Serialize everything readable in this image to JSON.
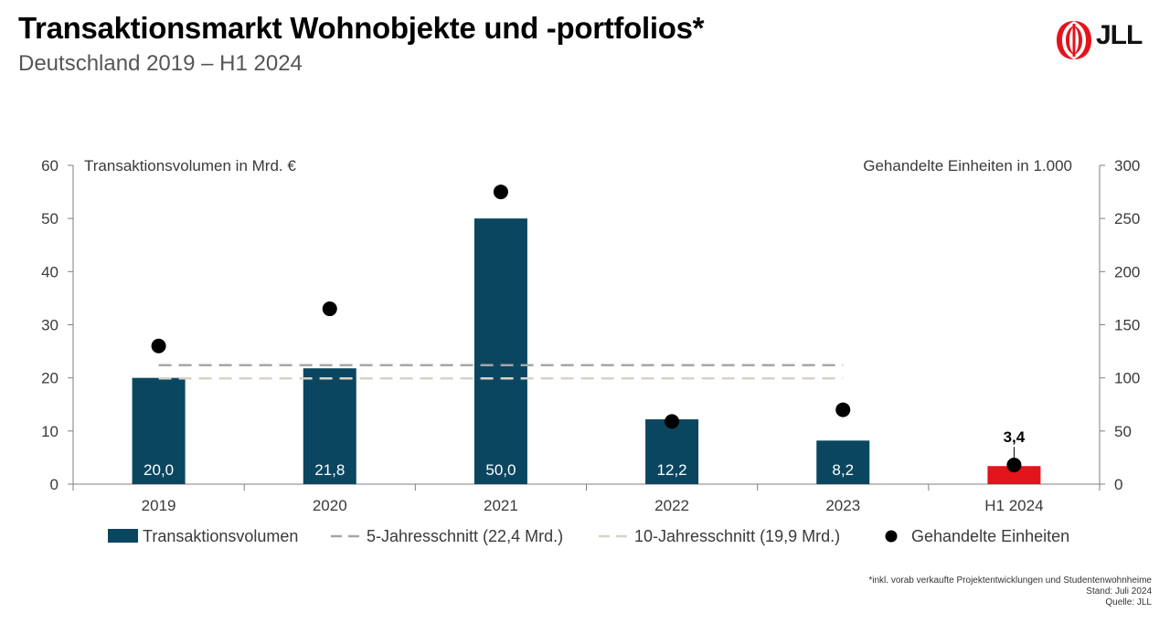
{
  "header": {
    "title": "Transaktionsmarkt Wohnobjekte und -portfolios*",
    "subtitle": "Deutschland 2019 – H1 2024",
    "logo_text": "JLL"
  },
  "footnotes": [
    "*inkl. vorab verkaufte Projektentwicklungen und Studentenwohnheime",
    "Stand: Juli 2024",
    "Quelle: JLL"
  ],
  "colors": {
    "bar": "#0b4660",
    "bar_highlight": "#e3141b",
    "avg5": "#a6a6a6",
    "avg10": "#d8d3c6",
    "dots": "#000000"
  },
  "chart_data": {
    "type": "bar",
    "categories": [
      "2019",
      "2020",
      "2021",
      "2022",
      "2023",
      "H1 2024"
    ],
    "ylabel_left": "Transaktionsvolumen in Mrd. €",
    "ylabel_right": "Gehandelte Einheiten in 1.000",
    "ylim_left": [
      0,
      60
    ],
    "yticks_left": [
      "0",
      "10",
      "20",
      "30",
      "40",
      "50",
      "60"
    ],
    "ylim_right": [
      0,
      300
    ],
    "yticks_right": [
      "0",
      "50",
      "100",
      "150",
      "200",
      "250",
      "300"
    ],
    "series": [
      {
        "name": "Transaktionsvolumen",
        "kind": "bar",
        "axis": "left",
        "values": [
          20.0,
          21.8,
          50.0,
          12.2,
          8.2,
          3.4
        ],
        "labels": [
          "20,0",
          "21,8",
          "50,0",
          "12,2",
          "8,2",
          "3,4"
        ],
        "highlight_last": true
      },
      {
        "name": "5-Jahresschnitt (22,4 Mrd.)",
        "kind": "dashed-line",
        "axis": "left",
        "value": 22.4,
        "span_categories": [
          "2019",
          "2023"
        ]
      },
      {
        "name": "10-Jahresschnitt (19,9 Mrd.)",
        "kind": "dashed-line",
        "axis": "left",
        "value": 19.9,
        "span_categories": [
          "2019",
          "2023"
        ]
      },
      {
        "name": "Gehandelte Einheiten",
        "kind": "scatter",
        "axis": "right",
        "values": [
          130,
          165,
          275,
          59,
          70,
          18
        ]
      }
    ],
    "legend_position": "bottom",
    "grid": false
  }
}
